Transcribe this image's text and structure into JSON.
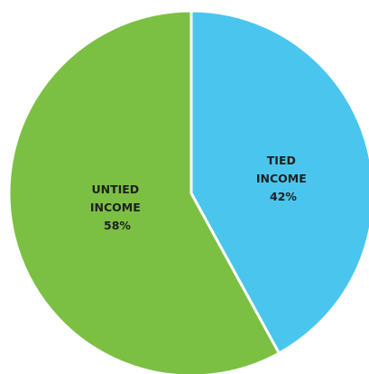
{
  "chart_data": {
    "type": "pie",
    "slices": [
      {
        "label_lines": [
          "TIED",
          "INCOME",
          "42%"
        ],
        "value": 42,
        "color": "#4ac6ee"
      },
      {
        "label_lines": [
          "UNTIED",
          "INCOME",
          "58%"
        ],
        "value": 58,
        "color": "#7bc043"
      }
    ],
    "start_angle_deg": 0,
    "direction": "clockwise",
    "slice_border_color": "#ffffff"
  }
}
